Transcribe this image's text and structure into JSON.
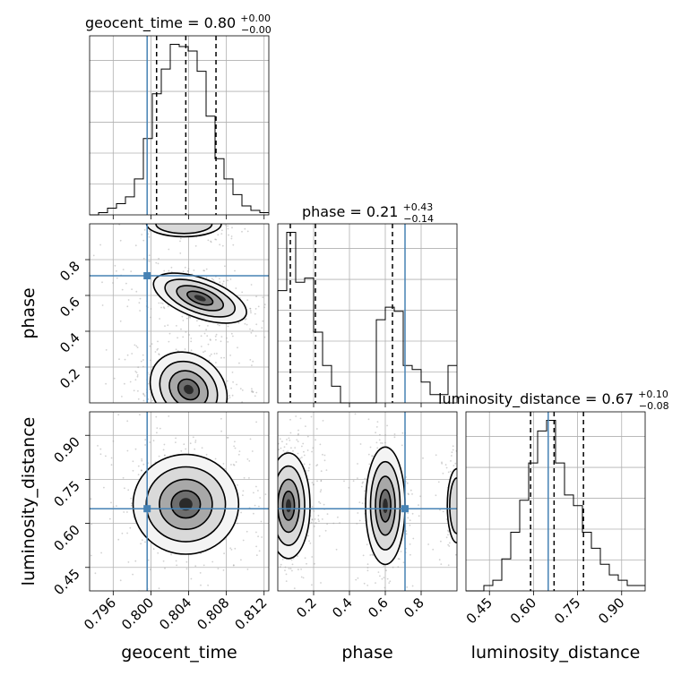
{
  "chart_data": {
    "type": "corner",
    "parameters": [
      {
        "name": "geocent_time",
        "xlabel": "geocent_time",
        "title": {
          "prefix": "geocent_time = 0.80",
          "plus": "+0.00",
          "minus": "−0.00"
        },
        "range": [
          0.7935,
          0.8125
        ],
        "ticks": [
          {
            "value": 0.796,
            "label": "0.796"
          },
          {
            "value": 0.8,
            "label": "0.800"
          },
          {
            "value": 0.804,
            "label": "0.804"
          },
          {
            "value": 0.808,
            "label": "0.808"
          },
          {
            "value": 0.812,
            "label": "0.812"
          }
        ],
        "truth": 0.7996,
        "quantiles": [
          0.8006,
          0.8037,
          0.8069
        ],
        "hist_edges_start": 0.7935,
        "hist_bin_width": 0.00095,
        "hist_counts": [
          0,
          1,
          3,
          5,
          8,
          16,
          34,
          54,
          65,
          76,
          75,
          73,
          64,
          44,
          25,
          16,
          9,
          4,
          2,
          1
        ]
      },
      {
        "name": "phase",
        "xlabel": "phase",
        "ylabel": "phase",
        "title": {
          "prefix": "phase = 0.21",
          "plus": "+0.43",
          "minus": "−0.14"
        },
        "range": [
          0.0,
          1.0
        ],
        "ticks": [
          {
            "value": 0.2,
            "label": "0.2"
          },
          {
            "value": 0.4,
            "label": "0.4"
          },
          {
            "value": 0.6,
            "label": "0.6"
          },
          {
            "value": 0.8,
            "label": "0.8"
          }
        ],
        "truth": 0.71,
        "quantiles": [
          0.07,
          0.21,
          0.64
        ],
        "hist_edges_start": 0.0,
        "hist_bin_width": 0.05,
        "hist_counts": [
          27,
          41,
          29,
          30,
          17,
          9,
          4,
          0,
          0,
          0,
          0,
          20,
          23,
          22,
          9,
          8,
          5,
          2,
          2,
          9
        ]
      },
      {
        "name": "luminosity_distance",
        "xlabel": "luminosity_distance",
        "ylabel": "luminosity_distance",
        "title": {
          "prefix": "luminosity_distance = 0.67",
          "plus": "+0.10",
          "minus": "−0.08"
        },
        "range": [
          0.37,
          0.98
        ],
        "ticks": [
          {
            "value": 0.45,
            "label": "0.45"
          },
          {
            "value": 0.6,
            "label": "0.60"
          },
          {
            "value": 0.75,
            "label": "0.75"
          },
          {
            "value": 0.9,
            "label": "0.90"
          }
        ],
        "truth": 0.65,
        "quantiles": [
          0.59,
          0.67,
          0.77
        ],
        "hist_edges_start": 0.37,
        "hist_bin_width": 0.0305,
        "hist_counts": [
          0,
          0,
          1,
          2,
          6,
          11,
          17,
          24,
          30,
          32,
          24,
          18,
          16,
          11,
          8,
          5,
          3,
          2,
          1,
          1
        ]
      }
    ],
    "pair_panels": [
      {
        "x": "geocent_time",
        "y": "phase",
        "blobs": [
          {
            "cx": 0.804,
            "cy": 0.075,
            "sx": 0.0022,
            "sy": 0.095,
            "rot": -0.72,
            "w": 1.0
          },
          {
            "cx": 0.8052,
            "cy": 0.585,
            "sx": 0.0026,
            "sy": 0.055,
            "rot": -0.35,
            "w": 0.7
          },
          {
            "cx": 0.8035,
            "cy": 1.0,
            "sx": 0.0022,
            "sy": 0.04,
            "rot": 0.0,
            "w": 0.3
          }
        ]
      },
      {
        "x": "geocent_time",
        "y": "luminosity_distance",
        "blobs": [
          {
            "cx": 0.8037,
            "cy": 0.665,
            "sx": 0.0028,
            "sy": 0.085,
            "rot": 0.0,
            "w": 1.0
          }
        ]
      },
      {
        "x": "phase",
        "y": "luminosity_distance",
        "blobs": [
          {
            "cx": 0.06,
            "cy": 0.66,
            "sx": 0.06,
            "sy": 0.09,
            "rot": 0.0,
            "w": 1.0
          },
          {
            "cx": 0.6,
            "cy": 0.66,
            "sx": 0.055,
            "sy": 0.1,
            "rot": 0.0,
            "w": 0.65
          },
          {
            "cx": 1.0,
            "cy": 0.66,
            "sx": 0.03,
            "sy": 0.07,
            "rot": 0.0,
            "w": 0.35
          }
        ]
      }
    ],
    "truth_color": "#4682b4",
    "grid": true
  }
}
